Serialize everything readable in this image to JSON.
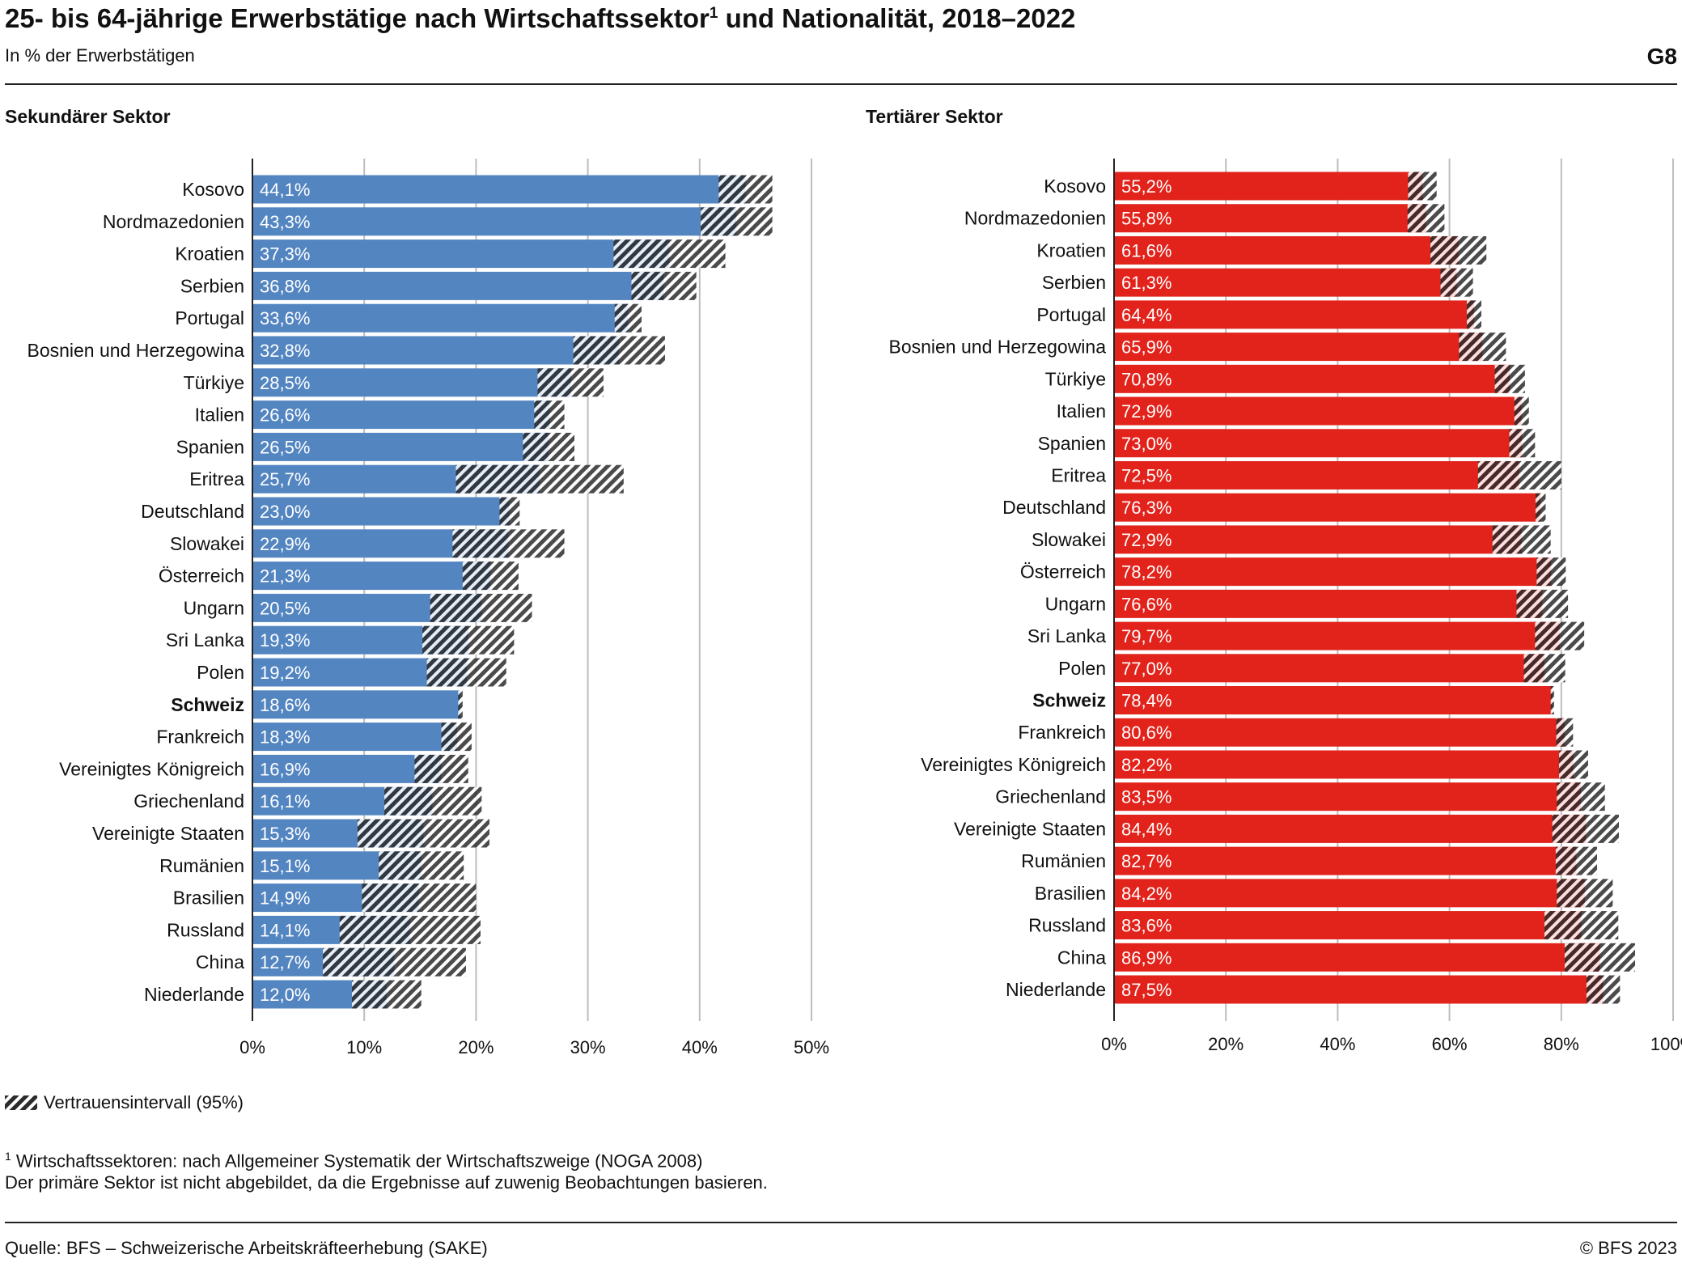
{
  "header": {
    "title": "25- bis 64-jährige Erwerbstätige nach Wirtschaftssektor",
    "title_sup": "1",
    "title_suffix": " und Nationalität, 2018–2022",
    "subtitle": "In % der Erwerbstätigen",
    "figure_number": "G8"
  },
  "legend": {
    "label": "Vertrauensintervall (95%)",
    "icon": "hatched-swatch"
  },
  "footnote": {
    "marker": "1",
    "line1": " Wirtschaftssektoren: nach Allgemeiner Systematik der Wirtschaftszweige (NOGA 2008)",
    "line2": "Der primäre Sektor ist nicht abgebildet, da die Ergebnisse auf zuwenig Beobachtungen basieren."
  },
  "footer": {
    "source": "Quelle: BFS – Schweizerische Arbeitskräfteerhebung (SAKE)",
    "copyright": "© BFS 2023"
  },
  "colors": {
    "secondary": "#5385c1",
    "tertiary": "#e2231b",
    "grid": "#bdbdbd",
    "ci_hatch": "#2b2b2b"
  },
  "chart_data": [
    {
      "type": "bar",
      "orientation": "horizontal",
      "title": "Sekundärer Sektor",
      "color": "#5385c1",
      "xlim": [
        0,
        50
      ],
      "xticks": [
        0,
        10,
        20,
        30,
        40,
        50
      ],
      "xtick_labels": [
        "0%",
        "10%",
        "20%",
        "30%",
        "40%",
        "50%"
      ],
      "highlight": "Schweiz",
      "categories": [
        "Kosovo",
        "Nordmazedonien",
        "Kroatien",
        "Serbien",
        "Portugal",
        "Bosnien und Herzegowina",
        "Türkiye",
        "Italien",
        "Spanien",
        "Eritrea",
        "Deutschland",
        "Slowakei",
        "Österreich",
        "Ungarn",
        "Sri Lanka",
        "Polen",
        "Schweiz",
        "Frankreich",
        "Vereinigtes Königreich",
        "Griechenland",
        "Vereinigte Staaten",
        "Rumänien",
        "Brasilien",
        "Russland",
        "China",
        "Niederlande"
      ],
      "values": [
        44.1,
        43.3,
        37.3,
        36.8,
        33.6,
        32.8,
        28.5,
        26.6,
        26.5,
        25.7,
        23.0,
        22.9,
        21.3,
        20.5,
        19.3,
        19.2,
        18.6,
        18.3,
        16.9,
        16.1,
        15.3,
        15.1,
        14.9,
        14.1,
        12.7,
        12.0
      ],
      "value_labels": [
        "44,1%",
        "43,3%",
        "37,3%",
        "36,8%",
        "33,6%",
        "32,8%",
        "28,5%",
        "26,6%",
        "26,5%",
        "25,7%",
        "23,0%",
        "22,9%",
        "21,3%",
        "20,5%",
        "19,3%",
        "19,2%",
        "18,6%",
        "18,3%",
        "16,9%",
        "16,1%",
        "15,3%",
        "15,1%",
        "14,9%",
        "14,1%",
        "12,7%",
        "12,0%"
      ],
      "ci_low": [
        41.7,
        40.1,
        32.3,
        33.9,
        32.4,
        28.7,
        25.5,
        25.2,
        24.2,
        18.2,
        22.1,
        17.9,
        18.8,
        15.9,
        15.2,
        15.6,
        18.4,
        16.9,
        14.5,
        11.8,
        9.4,
        11.3,
        9.8,
        7.8,
        6.3,
        8.9
      ],
      "ci_high": [
        46.5,
        46.5,
        42.3,
        39.7,
        34.8,
        36.9,
        31.4,
        27.9,
        28.8,
        33.2,
        23.9,
        27.9,
        23.8,
        25.0,
        23.4,
        22.7,
        18.8,
        19.6,
        19.3,
        20.5,
        21.2,
        18.9,
        20.0,
        20.4,
        19.1,
        15.1
      ]
    },
    {
      "type": "bar",
      "orientation": "horizontal",
      "title": "Tertiärer Sektor",
      "color": "#e2231b",
      "xlim": [
        0,
        100
      ],
      "xticks": [
        0,
        20,
        40,
        60,
        80,
        100
      ],
      "xtick_labels": [
        "0%",
        "20%",
        "40%",
        "60%",
        "80%",
        "100%"
      ],
      "highlight": "Schweiz",
      "categories": [
        "Kosovo",
        "Nordmazedonien",
        "Kroatien",
        "Serbien",
        "Portugal",
        "Bosnien und Herzegowina",
        "Türkiye",
        "Italien",
        "Spanien",
        "Eritrea",
        "Deutschland",
        "Slowakei",
        "Österreich",
        "Ungarn",
        "Sri Lanka",
        "Polen",
        "Schweiz",
        "Frankreich",
        "Vereinigtes Königreich",
        "Griechenland",
        "Vereinigte Staaten",
        "Rumänien",
        "Brasilien",
        "Russland",
        "China",
        "Niederlande"
      ],
      "values": [
        55.2,
        55.8,
        61.6,
        61.3,
        64.4,
        65.9,
        70.8,
        72.9,
        73.0,
        72.5,
        76.3,
        72.9,
        78.2,
        76.6,
        79.7,
        77.0,
        78.4,
        80.6,
        82.2,
        83.5,
        84.4,
        82.7,
        84.2,
        83.6,
        86.9,
        87.5
      ],
      "value_labels": [
        "55,2%",
        "55,8%",
        "61,6%",
        "61,3%",
        "64,4%",
        "65,9%",
        "70,8%",
        "72,9%",
        "73,0%",
        "72,5%",
        "76,3%",
        "72,9%",
        "78,2%",
        "76,6%",
        "79,7%",
        "77,0%",
        "78,4%",
        "80,6%",
        "82,2%",
        "83,5%",
        "84,4%",
        "82,7%",
        "84,2%",
        "83,6%",
        "86,9%",
        "87,5%"
      ],
      "ci_low": [
        52.6,
        52.5,
        56.6,
        58.4,
        63.1,
        61.7,
        68.1,
        71.6,
        70.7,
        65.1,
        75.4,
        67.7,
        75.6,
        72.0,
        75.3,
        73.3,
        78.1,
        79.1,
        79.6,
        79.2,
        78.4,
        79.0,
        79.2,
        77.0,
        80.6,
        84.5
      ],
      "ci_high": [
        57.7,
        59.1,
        66.6,
        64.2,
        65.7,
        70.1,
        73.5,
        74.2,
        75.3,
        80.0,
        77.2,
        78.1,
        80.8,
        81.2,
        84.1,
        80.7,
        78.7,
        82.1,
        84.8,
        87.8,
        90.3,
        86.4,
        89.2,
        90.2,
        93.2,
        90.5
      ]
    }
  ]
}
